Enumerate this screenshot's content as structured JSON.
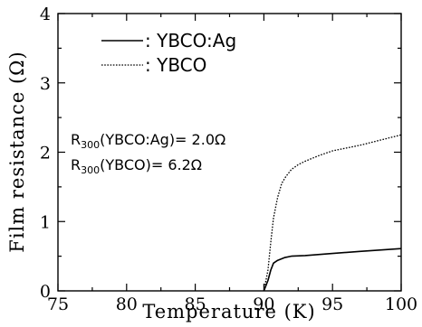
{
  "chart_data": {
    "type": "line",
    "xlabel": "Temperature (K)",
    "ylabel": "Film resistance (Ω)",
    "xlim": [
      75,
      100
    ],
    "ylim": [
      0,
      4
    ],
    "xticks": [
      "75",
      "80",
      "85",
      "90",
      "95",
      "100"
    ],
    "yticks": [
      "0",
      "1",
      "2",
      "3",
      "4"
    ],
    "grid": false,
    "legend_position": "top-left",
    "series": [
      {
        "name": "YBCO:Ag",
        "legend_label": ": YBCO:Ag",
        "style": "solid",
        "color": "#000000",
        "x": [
          90.0,
          90.3,
          90.5,
          90.7,
          91.0,
          91.5,
          92.0,
          93.0,
          95.0,
          97.0,
          100.0
        ],
        "y": [
          0.0,
          0.15,
          0.3,
          0.4,
          0.44,
          0.48,
          0.5,
          0.51,
          0.54,
          0.57,
          0.61
        ]
      },
      {
        "name": "YBCO",
        "legend_label": ": YBCO",
        "style": "dotted",
        "color": "#000000",
        "x": [
          90.0,
          90.3,
          90.5,
          90.7,
          91.0,
          91.3,
          91.6,
          92.0,
          92.5,
          93.0,
          94.0,
          95.0,
          97.0,
          100.0
        ],
        "y": [
          0.0,
          0.3,
          0.7,
          1.05,
          1.35,
          1.55,
          1.65,
          1.75,
          1.82,
          1.87,
          1.95,
          2.02,
          2.1,
          2.25
        ]
      }
    ],
    "annotations": {
      "line1": {
        "prefix": "R",
        "sub": "300",
        "body": "(YBCO:Ag)= 2.0Ω"
      },
      "line2": {
        "prefix": "R",
        "sub": "300",
        "body": "(YBCO)= 6.2Ω"
      }
    }
  }
}
